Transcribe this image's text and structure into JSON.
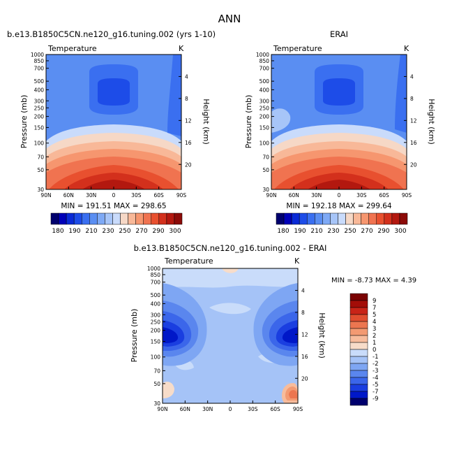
{
  "page": {
    "title": "ANN"
  },
  "panels": [
    {
      "id": "model",
      "title": "b.e13.B1850C5CN.ne120_g16.tuning.002 (yrs 1-10)",
      "variable": "Temperature",
      "units": "K",
      "stats": "MIN = 191.51   MAX = 298.65",
      "left_axis_label": "Pressure (mb)",
      "right_axis_label": "Height (km)"
    },
    {
      "id": "obs",
      "title": "ERAI",
      "variable": "Temperature",
      "units": "K",
      "stats": "MIN = 192.18   MAX = 299.64",
      "left_axis_label": "Pressure (mb)",
      "right_axis_label": "Height (km)"
    },
    {
      "id": "diff",
      "title": "b.e13.B1850C5CN.ne120_g16.tuning.002 - ERAI",
      "variable": "Temperature",
      "units": "K",
      "stats": "MIN =   -8.73   MAX =    4.39",
      "left_axis_label": "Pressure (mb)",
      "right_axis_label": "Height (km)"
    }
  ],
  "chart_data": [
    {
      "type": "heatmap",
      "title": "b.e13.B1850C5CN.ne120_g16.tuning.002 (yrs 1-10)",
      "subtitle": "Temperature",
      "units": "K",
      "xlabel": "",
      "ylabel": "Pressure (mb)",
      "ylabel_right": "Height (km)",
      "x_ticks": [
        "90N",
        "60N",
        "30N",
        "0",
        "30S",
        "60S",
        "90S"
      ],
      "y_ticks": [
        30,
        50,
        70,
        100,
        150,
        200,
        250,
        300,
        400,
        500,
        700,
        850,
        1000
      ],
      "y_right_ticks": [
        4,
        8,
        12,
        16,
        20
      ],
      "y_scale": "log",
      "ylim": [
        1000,
        30
      ],
      "xlim": [
        90,
        -90
      ],
      "min": 191.51,
      "max": 298.65,
      "colorbar_levels": [
        180,
        190,
        210,
        230,
        250,
        270,
        290,
        300
      ]
    },
    {
      "type": "heatmap",
      "title": "ERAI",
      "subtitle": "Temperature",
      "units": "K",
      "xlabel": "",
      "ylabel": "Pressure (mb)",
      "ylabel_right": "Height (km)",
      "x_ticks": [
        "90N",
        "60N",
        "30N",
        "0",
        "30S",
        "60S",
        "90S"
      ],
      "y_ticks": [
        30,
        50,
        70,
        100,
        150,
        200,
        250,
        300,
        400,
        500,
        700,
        850,
        1000
      ],
      "y_right_ticks": [
        4,
        8,
        12,
        16,
        20
      ],
      "y_scale": "log",
      "ylim": [
        1000,
        30
      ],
      "xlim": [
        90,
        -90
      ],
      "min": 192.18,
      "max": 299.64,
      "colorbar_levels": [
        180,
        190,
        210,
        230,
        250,
        270,
        290,
        300
      ]
    },
    {
      "type": "heatmap",
      "title": "b.e13.B1850C5CN.ne120_g16.tuning.002 - ERAI",
      "subtitle": "Temperature",
      "units": "K",
      "xlabel": "",
      "ylabel": "Pressure (mb)",
      "ylabel_right": "Height (km)",
      "x_ticks": [
        "90N",
        "60N",
        "30N",
        "0",
        "30S",
        "60S",
        "90S"
      ],
      "y_ticks": [
        30,
        50,
        70,
        100,
        150,
        200,
        250,
        300,
        400,
        500,
        700,
        850,
        1000
      ],
      "y_right_ticks": [
        4,
        8,
        12,
        16,
        20
      ],
      "y_scale": "log",
      "ylim": [
        1000,
        30
      ],
      "xlim": [
        90,
        -90
      ],
      "min": -8.73,
      "max": 4.39,
      "colorbar_levels": [
        9,
        7,
        5,
        4,
        3,
        2,
        1,
        0,
        -1,
        -2,
        -3,
        -4,
        -5,
        -7,
        -9
      ]
    }
  ],
  "colors": {
    "temp_scale": [
      "#00006e",
      "#0000b8",
      "#0a2ad6",
      "#1d4ce8",
      "#3a6ff0",
      "#5a8ef2",
      "#7ea9f5",
      "#a7c5f8",
      "#c9dbfb",
      "#f6d8c6",
      "#f8b898",
      "#f6966f",
      "#f07350",
      "#e8502f",
      "#d3301c",
      "#b3180f",
      "#8c0b08"
    ],
    "diff_scale": [
      "#00006e",
      "#0018c8",
      "#1a3ee0",
      "#3b66ea",
      "#5a86ee",
      "#7ea6f3",
      "#a5c3f7",
      "#c9dcfa",
      "#f7dcc9",
      "#f7bc9c",
      "#f39a72",
      "#ec7650",
      "#e04e30",
      "#c82418",
      "#a30d08",
      "#7a0303"
    ]
  }
}
